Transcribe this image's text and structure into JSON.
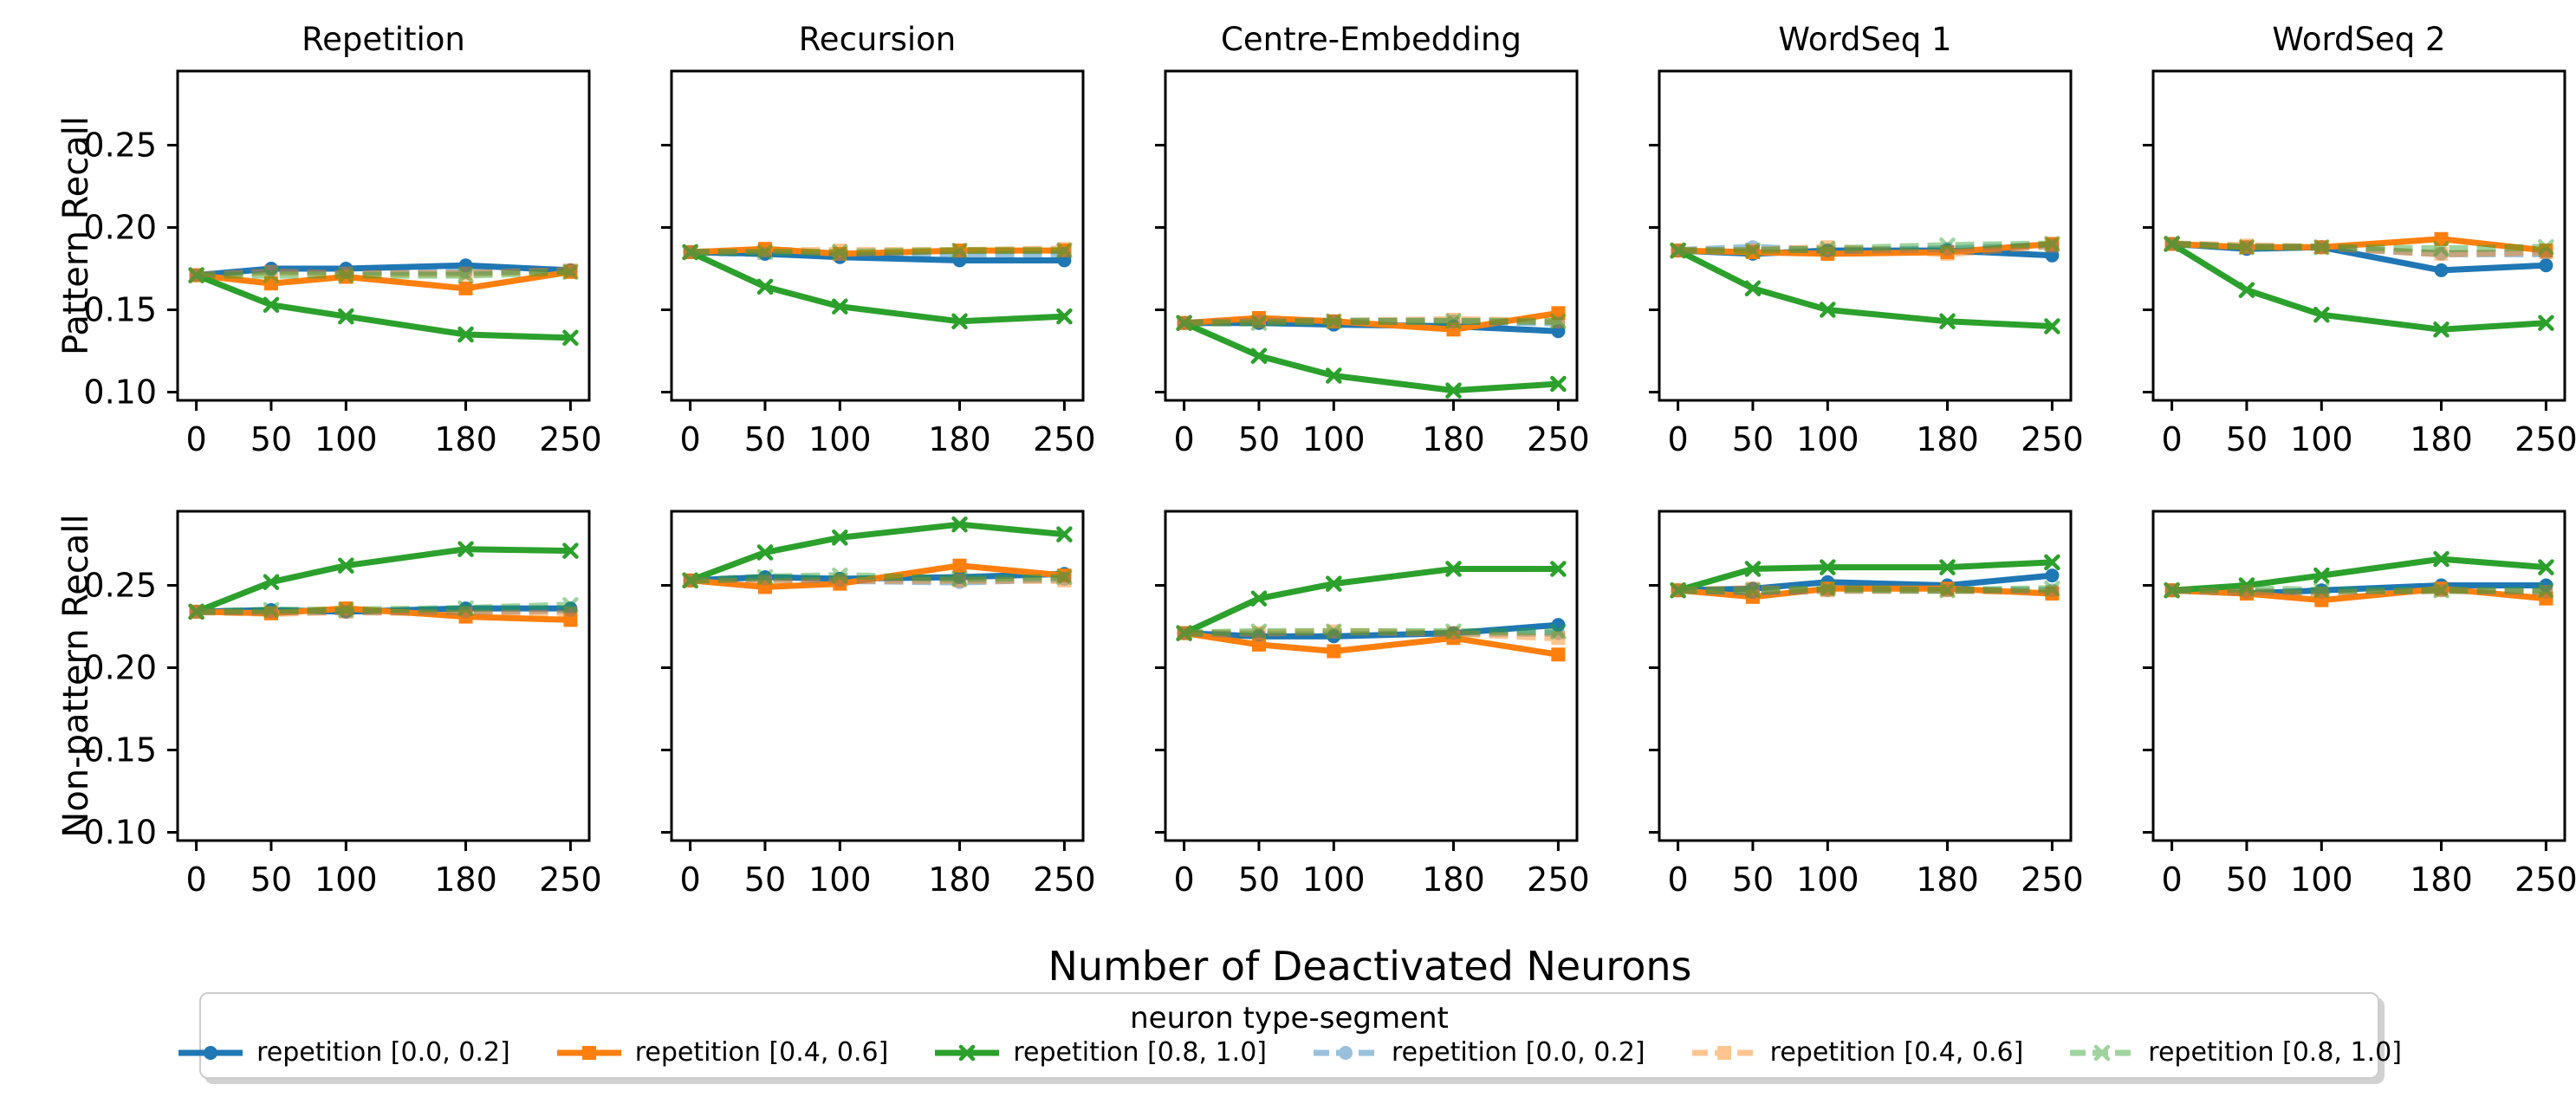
{
  "chart_data": {
    "type": "line",
    "x": [
      0,
      50,
      100,
      180,
      250
    ],
    "x_tick_labels": [
      "0",
      "50",
      "100",
      "180",
      "250"
    ],
    "xlim": [
      -12.5,
      262.5
    ],
    "ylim": [
      0.095,
      0.295
    ],
    "y_ticks": [
      0.1,
      0.15,
      0.2,
      0.25
    ],
    "grid": false,
    "xlabel": "Number of Deactivated Neurons",
    "row_labels": [
      "Pattern Recall",
      "Non-pattern Recall"
    ],
    "columns": [
      "Repetition",
      "Recursion",
      "Centre-Embedding",
      "WordSeq 1",
      "WordSeq 2"
    ],
    "legend_title": "neuron type-segment",
    "legend_position": "bottom",
    "series_styles": [
      {
        "name": "repetition [0.0, 0.2]",
        "color": "#1f77b4",
        "dash": false,
        "marker": "circle",
        "opacity": 1
      },
      {
        "name": "repetition [0.4, 0.6]",
        "color": "#ff7f0e",
        "dash": false,
        "marker": "square",
        "opacity": 1
      },
      {
        "name": "repetition [0.8, 1.0]",
        "color": "#2ca02c",
        "dash": false,
        "marker": "x",
        "opacity": 1
      },
      {
        "name": "repetition [0.0, 0.2]",
        "color": "#1f77b4",
        "dash": true,
        "marker": "circle",
        "opacity": 0.45
      },
      {
        "name": "repetition [0.4, 0.6]",
        "color": "#ff7f0e",
        "dash": true,
        "marker": "square",
        "opacity": 0.45
      },
      {
        "name": "repetition [0.8, 1.0]",
        "color": "#2ca02c",
        "dash": true,
        "marker": "x",
        "opacity": 0.45
      }
    ],
    "panels": [
      {
        "row": 0,
        "col": 0,
        "title": "Repetition",
        "series": [
          [
            0.171,
            0.175,
            0.175,
            0.177,
            0.174
          ],
          [
            0.171,
            0.166,
            0.17,
            0.163,
            0.173
          ],
          [
            0.171,
            0.153,
            0.146,
            0.135,
            0.133
          ],
          [
            0.171,
            0.174,
            0.173,
            0.173,
            0.174
          ],
          [
            0.171,
            0.173,
            0.172,
            0.172,
            0.174
          ],
          [
            0.171,
            0.171,
            0.171,
            0.171,
            0.173
          ]
        ]
      },
      {
        "row": 0,
        "col": 1,
        "title": "Recursion",
        "series": [
          [
            0.185,
            0.184,
            0.182,
            0.18,
            0.18
          ],
          [
            0.185,
            0.187,
            0.184,
            0.186,
            0.186
          ],
          [
            0.185,
            0.164,
            0.152,
            0.143,
            0.146
          ],
          [
            0.185,
            0.184,
            0.183,
            0.183,
            0.184
          ],
          [
            0.185,
            0.186,
            0.186,
            0.186,
            0.187
          ],
          [
            0.185,
            0.185,
            0.185,
            0.186,
            0.186
          ]
        ]
      },
      {
        "row": 0,
        "col": 2,
        "title": "Centre-Embedding",
        "series": [
          [
            0.142,
            0.142,
            0.141,
            0.14,
            0.137
          ],
          [
            0.142,
            0.145,
            0.143,
            0.138,
            0.148
          ],
          [
            0.142,
            0.122,
            0.11,
            0.101,
            0.105
          ],
          [
            0.142,
            0.143,
            0.143,
            0.143,
            0.142
          ],
          [
            0.142,
            0.143,
            0.143,
            0.144,
            0.143
          ],
          [
            0.142,
            0.142,
            0.143,
            0.143,
            0.143
          ]
        ]
      },
      {
        "row": 0,
        "col": 3,
        "title": "WordSeq 1",
        "series": [
          [
            0.186,
            0.184,
            0.186,
            0.186,
            0.183
          ],
          [
            0.186,
            0.185,
            0.184,
            0.185,
            0.19
          ],
          [
            0.186,
            0.163,
            0.15,
            0.143,
            0.14
          ],
          [
            0.186,
            0.188,
            0.186,
            0.187,
            0.189
          ],
          [
            0.186,
            0.186,
            0.188,
            0.184,
            0.189
          ],
          [
            0.186,
            0.186,
            0.187,
            0.189,
            0.19
          ]
        ]
      },
      {
        "row": 0,
        "col": 4,
        "title": "WordSeq 2",
        "series": [
          [
            0.19,
            0.187,
            0.188,
            0.174,
            0.177
          ],
          [
            0.19,
            0.188,
            0.188,
            0.193,
            0.186
          ],
          [
            0.19,
            0.162,
            0.147,
            0.138,
            0.142
          ],
          [
            0.19,
            0.188,
            0.188,
            0.184,
            0.184
          ],
          [
            0.19,
            0.189,
            0.188,
            0.184,
            0.185
          ],
          [
            0.19,
            0.188,
            0.188,
            0.187,
            0.188
          ]
        ]
      },
      {
        "row": 1,
        "col": 0,
        "title": "",
        "series": [
          [
            0.234,
            0.235,
            0.234,
            0.236,
            0.236
          ],
          [
            0.234,
            0.233,
            0.236,
            0.231,
            0.229
          ],
          [
            0.234,
            0.252,
            0.262,
            0.272,
            0.271
          ],
          [
            0.234,
            0.234,
            0.234,
            0.234,
            0.235
          ],
          [
            0.234,
            0.233,
            0.234,
            0.233,
            0.233
          ],
          [
            0.234,
            0.235,
            0.235,
            0.236,
            0.238
          ]
        ]
      },
      {
        "row": 1,
        "col": 1,
        "title": "",
        "series": [
          [
            0.253,
            0.255,
            0.254,
            0.255,
            0.257
          ],
          [
            0.253,
            0.249,
            0.251,
            0.262,
            0.256
          ],
          [
            0.253,
            0.27,
            0.279,
            0.287,
            0.281
          ],
          [
            0.253,
            0.254,
            0.253,
            0.252,
            0.254
          ],
          [
            0.253,
            0.252,
            0.253,
            0.253,
            0.253
          ],
          [
            0.253,
            0.255,
            0.256,
            0.254,
            0.255
          ]
        ]
      },
      {
        "row": 1,
        "col": 2,
        "title": "",
        "series": [
          [
            0.221,
            0.219,
            0.219,
            0.221,
            0.226
          ],
          [
            0.221,
            0.214,
            0.21,
            0.218,
            0.208
          ],
          [
            0.221,
            0.242,
            0.251,
            0.26,
            0.26
          ],
          [
            0.221,
            0.22,
            0.22,
            0.221,
            0.221
          ],
          [
            0.221,
            0.221,
            0.222,
            0.221,
            0.218
          ],
          [
            0.221,
            0.222,
            0.222,
            0.222,
            0.222
          ]
        ]
      },
      {
        "row": 1,
        "col": 3,
        "title": "",
        "series": [
          [
            0.247,
            0.248,
            0.252,
            0.25,
            0.256
          ],
          [
            0.247,
            0.243,
            0.248,
            0.248,
            0.245
          ],
          [
            0.247,
            0.26,
            0.261,
            0.261,
            0.264
          ],
          [
            0.247,
            0.246,
            0.247,
            0.247,
            0.247
          ],
          [
            0.247,
            0.248,
            0.247,
            0.247,
            0.246
          ],
          [
            0.247,
            0.247,
            0.248,
            0.247,
            0.248
          ]
        ]
      },
      {
        "row": 1,
        "col": 4,
        "title": "",
        "series": [
          [
            0.247,
            0.245,
            0.247,
            0.25,
            0.25
          ],
          [
            0.247,
            0.245,
            0.241,
            0.248,
            0.242
          ],
          [
            0.247,
            0.25,
            0.256,
            0.266,
            0.261
          ],
          [
            0.247,
            0.246,
            0.246,
            0.247,
            0.246
          ],
          [
            0.247,
            0.246,
            0.245,
            0.247,
            0.246
          ],
          [
            0.247,
            0.248,
            0.247,
            0.247,
            0.247
          ]
        ]
      }
    ]
  }
}
